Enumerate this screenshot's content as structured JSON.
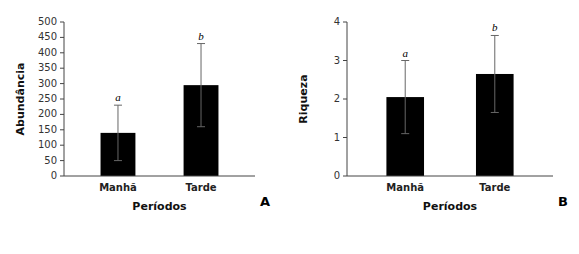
{
  "chart_data": [
    {
      "type": "bar",
      "title": "A",
      "categories": [
        "Manhã",
        "Tarde"
      ],
      "values": [
        140,
        295
      ],
      "errors": [
        90,
        135
      ],
      "annotations": [
        "a",
        "b"
      ],
      "ylabel": "Abundância",
      "xlabel": "Períodos",
      "ylim": [
        0,
        500
      ],
      "yticks": [
        0,
        50,
        100,
        150,
        200,
        250,
        300,
        350,
        400,
        450,
        500
      ],
      "color": "#000000"
    },
    {
      "type": "bar",
      "title": "B",
      "categories": [
        "Manhã",
        "Tarde"
      ],
      "values": [
        2.05,
        2.65
      ],
      "errors": [
        0.95,
        1.0
      ],
      "annotations": [
        "a",
        "b"
      ],
      "ylabel": "Riqueza",
      "xlabel": "Períodos",
      "ylim": [
        0,
        4
      ],
      "yticks": [
        0,
        1,
        2,
        3,
        4
      ],
      "color": "#000000"
    }
  ]
}
